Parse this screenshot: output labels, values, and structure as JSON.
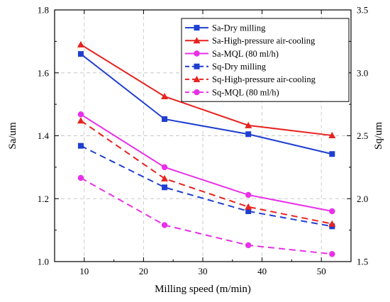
{
  "chart_data": {
    "type": "line",
    "xlabel": "Milling speed (m/min)",
    "ylabel": "Sa/um",
    "y2label": "Sq/um",
    "xlim": [
      5,
      55
    ],
    "ylim": [
      1.0,
      1.8
    ],
    "y2lim": [
      1.5,
      3.5
    ],
    "xticks": [
      "10",
      "20",
      "30",
      "40",
      "50"
    ],
    "yticks": [
      "1.0",
      "1.2",
      "1.4",
      "1.6",
      "1.8"
    ],
    "y2ticks": [
      "1.5",
      "2.0",
      "2.5",
      "3.0",
      "3.5"
    ],
    "grid": true,
    "legend_position": "top-right",
    "x": [
      9.42,
      23.55,
      37.68,
      51.81
    ],
    "series": [
      {
        "name": "Sa-Dry milling",
        "axis": "left",
        "color": "#1f3fd0",
        "marker": "square",
        "dash": false,
        "values": [
          1.66,
          1.453,
          1.405,
          1.342
        ]
      },
      {
        "name": "Sa-High-pressure air-cooling",
        "axis": "left",
        "color": "#e8231f",
        "marker": "triangle",
        "dash": false,
        "values": [
          1.69,
          1.525,
          1.433,
          1.401
        ]
      },
      {
        "name": "Sa-MQL (80 ml/h)",
        "axis": "left",
        "color": "#e830e8",
        "marker": "circle",
        "dash": false,
        "values": [
          1.468,
          1.3,
          1.212,
          1.16
        ]
      },
      {
        "name": "Sq-Dry milling",
        "axis": "right",
        "color": "#1f3fd0",
        "marker": "square",
        "dash": true,
        "values": [
          2.42,
          2.09,
          1.9,
          1.78
        ]
      },
      {
        "name": "Sq-High-pressure air-cooling",
        "axis": "right",
        "color": "#e8231f",
        "marker": "triangle",
        "dash": true,
        "values": [
          2.62,
          2.16,
          1.935,
          1.8
        ]
      },
      {
        "name": "Sq-MQL (80 ml/h)",
        "axis": "right",
        "color": "#e830e8",
        "marker": "circle",
        "dash": true,
        "values": [
          2.165,
          1.79,
          1.63,
          1.56
        ]
      }
    ]
  }
}
